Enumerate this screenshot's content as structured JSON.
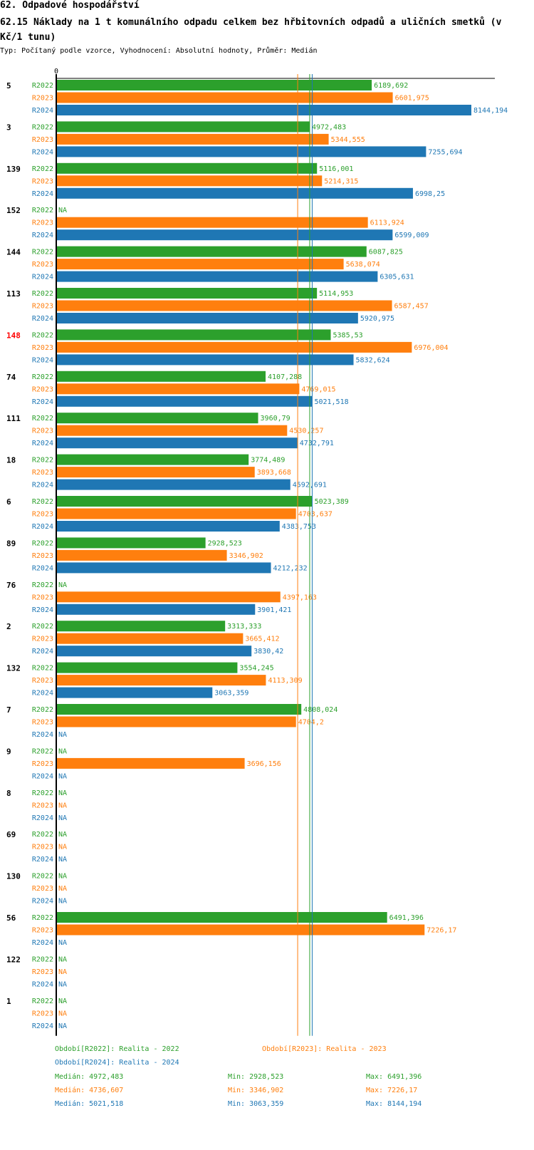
{
  "header": {
    "title": "62. Odpadové hospodářství",
    "chart_title": "62.15 Náklady na 1 t komunálního odpadu celkem bez hřbitovních odpadů a uličních smetků (v Kč/1 tunu)",
    "subtitle": "Typ: Počítaný podle vzorce, Vyhodnocení: Absolutní hodnoty, Průměr: Medián"
  },
  "colors": {
    "R2022": "#2ca02c",
    "R2023": "#ff7f0e",
    "R2024": "#1f77b4",
    "highlight": "#ff0000"
  },
  "chart_data": {
    "type": "bar",
    "orientation": "horizontal",
    "xaxis_tick": "0",
    "xlim": [
      0,
      8144.194
    ],
    "na_label": "NA",
    "highlight_category": "148",
    "categories": [
      "5",
      "3",
      "139",
      "152",
      "144",
      "113",
      "148",
      "74",
      "111",
      "18",
      "6",
      "89",
      "76",
      "2",
      "132",
      "7",
      "9",
      "8",
      "69",
      "130",
      "56",
      "122",
      "1"
    ],
    "series": [
      {
        "name": "R2022",
        "values": [
          6189.692,
          4972.483,
          5116.001,
          null,
          6087.825,
          5114.953,
          5385.53,
          4107.288,
          3960.79,
          3774.489,
          5023.389,
          2928.523,
          null,
          3313.333,
          3554.245,
          4808.024,
          null,
          null,
          null,
          null,
          6491.396,
          null,
          null
        ],
        "labels": [
          "6189,692",
          "4972,483",
          "5116,001",
          null,
          "6087,825",
          "5114,953",
          "5385,53",
          "4107,288",
          "3960,79",
          "3774,489",
          "5023,389",
          "2928,523",
          null,
          "3313,333",
          "3554,245",
          "4808,024",
          null,
          null,
          null,
          null,
          "6491,396",
          null,
          null
        ]
      },
      {
        "name": "R2023",
        "values": [
          6601.975,
          5344.555,
          5214.315,
          6113.924,
          5638.074,
          6587.457,
          6976.004,
          4769.015,
          4530.257,
          3893.668,
          4703.637,
          3346.902,
          4397.163,
          3665.412,
          4113.309,
          4704.2,
          3696.156,
          null,
          null,
          null,
          7226.17,
          null,
          null
        ],
        "labels": [
          "6601,975",
          "5344,555",
          "5214,315",
          "6113,924",
          "5638,074",
          "6587,457",
          "6976,004",
          "4769,015",
          "4530,257",
          "3893,668",
          "4703,637",
          "3346,902",
          "4397,163",
          "3665,412",
          "4113,309",
          "4704,2",
          "3696,156",
          null,
          null,
          null,
          "7226,17",
          null,
          null
        ]
      },
      {
        "name": "R2024",
        "values": [
          8144.194,
          7255.694,
          6998.25,
          6599.009,
          6305.631,
          5920.975,
          5832.624,
          5021.518,
          4732.791,
          4592.691,
          4383.753,
          4212.232,
          3901.421,
          3830.42,
          3063.359,
          null,
          null,
          null,
          null,
          null,
          null,
          null,
          null
        ],
        "labels": [
          "8144,194",
          "7255,694",
          "6998,25",
          "6599,009",
          "6305,631",
          "5920,975",
          "5832,624",
          "5021,518",
          "4732,791",
          "4592,691",
          "4383,753",
          "4212,232",
          "3901,421",
          "3830,42",
          "3063,359",
          null,
          null,
          null,
          null,
          null,
          null,
          null,
          null
        ]
      }
    ],
    "reference_lines": [
      {
        "series": "R2022",
        "value": 4972.483
      },
      {
        "series": "R2023",
        "value": 4736.607
      },
      {
        "series": "R2024",
        "value": 5021.518
      }
    ]
  },
  "legend": {
    "period_R2022": "Období[R2022]: Realita - 2022",
    "period_R2023": "Období[R2023]: Realita - 2023",
    "period_R2024": "Období[R2024]: Realita - 2024",
    "stats": [
      {
        "median": "Medián: 4972,483",
        "min": "Min: 2928,523",
        "max": "Max: 6491,396"
      },
      {
        "median": "Medián: 4736,607",
        "min": "Min: 3346,902",
        "max": "Max: 7226,17"
      },
      {
        "median": "Medián: 5021,518",
        "min": "Min: 3063,359",
        "max": "Max: 8144,194"
      }
    ]
  }
}
